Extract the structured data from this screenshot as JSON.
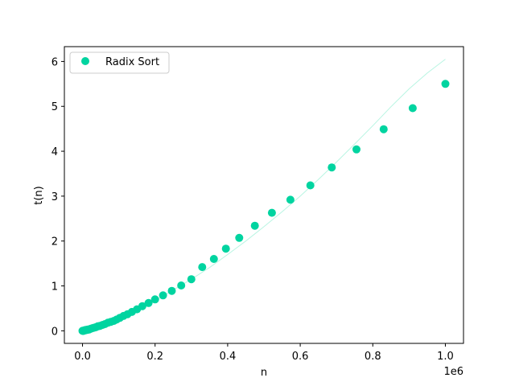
{
  "chart_data": {
    "type": "scatter",
    "title": "",
    "xlabel": "n",
    "ylabel": "t(n)",
    "x_offset_label": "1e6",
    "xlim": [
      -50000,
      1050000
    ],
    "ylim": [
      -0.28,
      6.33
    ],
    "x_ticks": [
      0,
      200000,
      400000,
      600000,
      800000,
      1000000
    ],
    "x_tick_labels": [
      "0.0",
      "0.2",
      "0.4",
      "0.6",
      "0.8",
      "1.0"
    ],
    "y_ticks": [
      0,
      1,
      2,
      3,
      4,
      5,
      6
    ],
    "y_tick_labels": [
      "0",
      "1",
      "2",
      "3",
      "4",
      "5",
      "6"
    ],
    "grid": false,
    "legend_position": "upper-left",
    "series": [
      {
        "name": "Radix Sort",
        "color": "#00d4a0",
        "points": [
          [
            0,
            0.0
          ],
          [
            1000,
            0.0
          ],
          [
            2000,
            0.0
          ],
          [
            3000,
            0.0
          ],
          [
            5000,
            0.01
          ],
          [
            7000,
            0.01
          ],
          [
            9000,
            0.02
          ],
          [
            12000,
            0.02
          ],
          [
            15000,
            0.03
          ],
          [
            18000,
            0.03
          ],
          [
            21000,
            0.04
          ],
          [
            24000,
            0.05
          ],
          [
            28000,
            0.06
          ],
          [
            32000,
            0.07
          ],
          [
            37000,
            0.08
          ],
          [
            42000,
            0.1
          ],
          [
            48000,
            0.11
          ],
          [
            55000,
            0.13
          ],
          [
            62000,
            0.15
          ],
          [
            70000,
            0.18
          ],
          [
            78000,
            0.2
          ],
          [
            86000,
            0.22
          ],
          [
            94000,
            0.25
          ],
          [
            103000,
            0.29
          ],
          [
            113000,
            0.33
          ],
          [
            124000,
            0.37
          ],
          [
            136000,
            0.42
          ],
          [
            150000,
            0.48
          ],
          [
            165000,
            0.55
          ],
          [
            182000,
            0.62
          ],
          [
            200000,
            0.7
          ],
          [
            222000,
            0.79
          ],
          [
            246000,
            0.89
          ],
          [
            272000,
            1.01
          ],
          [
            300000,
            1.15
          ],
          [
            330000,
            1.42
          ],
          [
            362000,
            1.6
          ],
          [
            395000,
            1.83
          ],
          [
            432000,
            2.07
          ],
          [
            475000,
            2.34
          ],
          [
            522000,
            2.63
          ],
          [
            573000,
            2.92
          ],
          [
            628000,
            3.24
          ],
          [
            687000,
            3.64
          ],
          [
            755000,
            4.04
          ],
          [
            830000,
            4.49
          ],
          [
            910000,
            4.96
          ],
          [
            1000000,
            5.5
          ]
        ]
      }
    ],
    "fit_curve": {
      "color": "#b8f5e2",
      "points": [
        [
          0,
          0.0
        ],
        [
          50000,
          0.12
        ],
        [
          100000,
          0.27
        ],
        [
          150000,
          0.45
        ],
        [
          200000,
          0.67
        ],
        [
          250000,
          0.91
        ],
        [
          300000,
          1.15
        ],
        [
          350000,
          1.41
        ],
        [
          400000,
          1.7
        ],
        [
          450000,
          2.0
        ],
        [
          500000,
          2.32
        ],
        [
          550000,
          2.65
        ],
        [
          600000,
          3.0
        ],
        [
          650000,
          3.37
        ],
        [
          700000,
          3.76
        ],
        [
          750000,
          4.16
        ],
        [
          800000,
          4.57
        ],
        [
          850000,
          4.99
        ],
        [
          900000,
          5.39
        ],
        [
          950000,
          5.74
        ],
        [
          1000000,
          6.05
        ]
      ]
    }
  }
}
